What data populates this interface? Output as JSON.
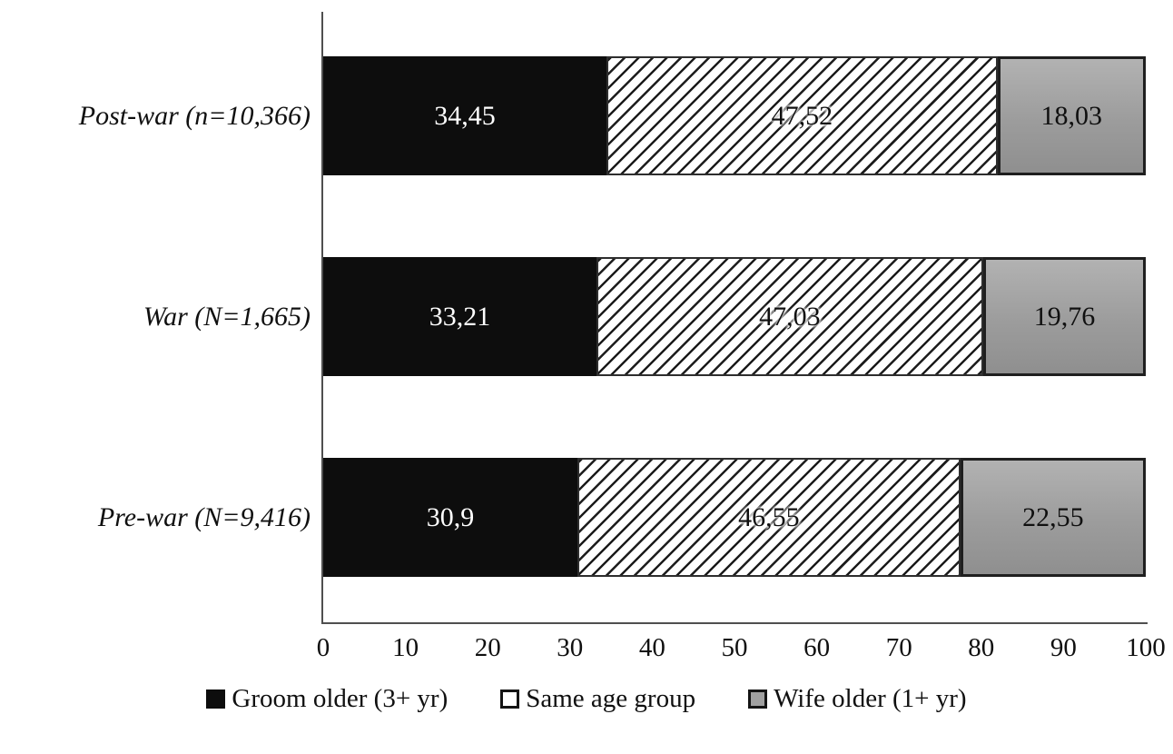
{
  "chart_data": {
    "type": "bar",
    "orientation": "horizontal",
    "stacked": true,
    "title": "",
    "xlabel": "",
    "ylabel": "",
    "xlim": [
      0,
      100
    ],
    "x_ticks": [
      "0",
      "10",
      "20",
      "30",
      "40",
      "50",
      "60",
      "70",
      "80",
      "90",
      "100"
    ],
    "grid": false,
    "legend_position": "bottom",
    "decimal_separator": "comma",
    "categories": [
      "Post-war (n=10,366)",
      "War (N=1,665)",
      "Pre-war (N=9,416)"
    ],
    "series": [
      {
        "name": "Groom older (3+ yr)",
        "slug": "groom-older",
        "values": [
          34.45,
          33.21,
          30.9
        ],
        "display": [
          "34,45",
          "33,21",
          "30,9"
        ],
        "style": "solid-black",
        "color": "#0d0d0d"
      },
      {
        "name": "Same age group",
        "slug": "same-age-group",
        "values": [
          47.52,
          47.03,
          46.55
        ],
        "display": [
          "47,52",
          "47,03",
          "46,55"
        ],
        "style": "diagonal-hatch",
        "color": "#ffffff"
      },
      {
        "name": "Wife older (1+ yr)",
        "slug": "wife-older",
        "values": [
          18.03,
          19.76,
          22.55
        ],
        "display": [
          "18,03",
          "19,76",
          "22,55"
        ],
        "style": "solid-gray",
        "color": "#9e9e9e"
      }
    ]
  }
}
